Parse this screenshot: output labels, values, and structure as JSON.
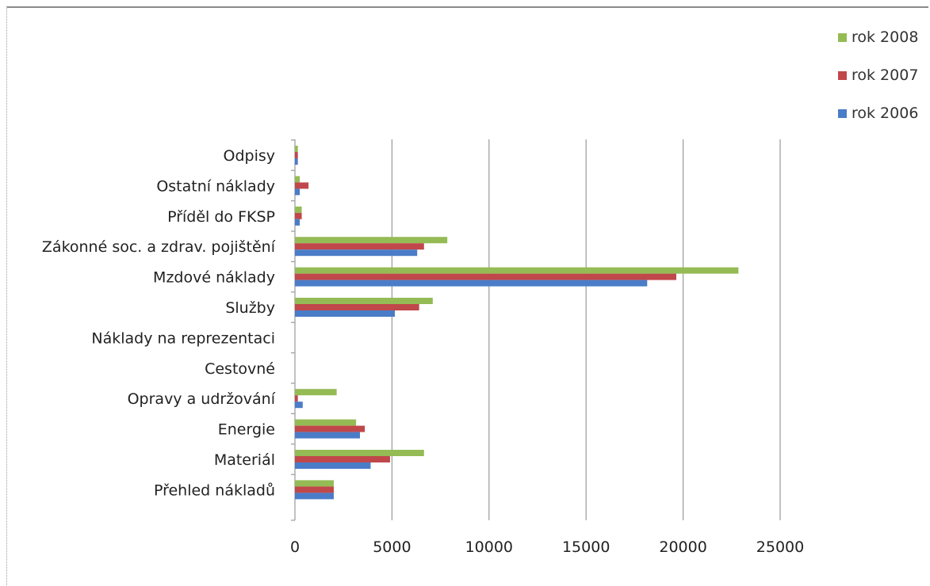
{
  "chart_data": {
    "type": "bar",
    "orientation": "horizontal",
    "categories": [
      "Přehled nákladů",
      "Materiál",
      "Energie",
      "Opravy a udržování",
      "Cestovné",
      "Náklady na reprezentaci",
      "Služby",
      "Mzdové náklady",
      "Zákonné soc. a zdrav. pojištění",
      "Příděl do FKSP",
      "Ostatní náklady",
      "Odpisy"
    ],
    "series": [
      {
        "name": "rok 2006",
        "color": "#4a7cc8",
        "values": [
          2000,
          3900,
          3350,
          400,
          0,
          0,
          5150,
          18150,
          6300,
          250,
          250,
          150
        ]
      },
      {
        "name": "rok 2007",
        "color": "#c0474a",
        "values": [
          2000,
          4900,
          3600,
          150,
          0,
          0,
          6400,
          19650,
          6650,
          350,
          700,
          150
        ]
      },
      {
        "name": "rok 2008",
        "color": "#94bb54",
        "values": [
          2000,
          6650,
          3150,
          2150,
          0,
          0,
          7100,
          22850,
          7850,
          350,
          250,
          150
        ]
      }
    ],
    "legend": [
      "rok 2008",
      "rok 2007",
      "rok 2006"
    ],
    "xticks": [
      "0",
      "5000",
      "10000",
      "15000",
      "20000",
      "25000"
    ],
    "xlim": [
      0,
      25000
    ],
    "grid": "vertical",
    "legend_position": "top-right",
    "title": "",
    "xlabel": "",
    "ylabel": ""
  }
}
